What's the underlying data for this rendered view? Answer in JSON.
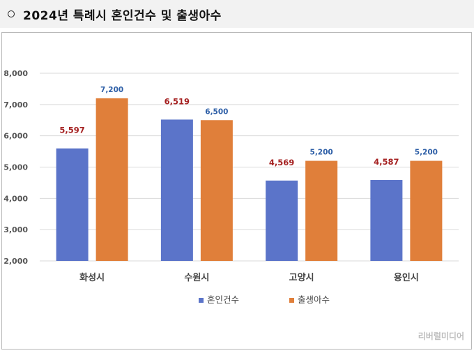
{
  "header": {
    "title": "2024년 특례시 혼인건수 및 출생아수"
  },
  "watermark": "리버럴미디어",
  "colors": {
    "series1": "#5b74c9",
    "series2": "#e07f3a",
    "label1": "#a52121",
    "label2": "#2e5fa7",
    "axis_text": "#555555",
    "grid": "#d9d9d9"
  },
  "chart_data": {
    "type": "bar",
    "categories": [
      "화성시",
      "수원시",
      "고양시",
      "용인시"
    ],
    "series": [
      {
        "name": "혼인건수",
        "values": [
          5597,
          6519,
          4569,
          4587
        ],
        "labels": [
          "5,597",
          "6,519",
          "4,569",
          "4,587"
        ]
      },
      {
        "name": "출생아수",
        "values": [
          7200,
          6500,
          5200,
          5200
        ],
        "labels": [
          "7,200",
          "6,500",
          "5,200",
          "5,200"
        ]
      }
    ],
    "ylim": [
      2000,
      8000
    ],
    "yticks": [
      2000,
      3000,
      4000,
      5000,
      6000,
      7000,
      8000
    ],
    "ytick_labels": [
      "2,000",
      "3,000",
      "4,000",
      "5,000",
      "6,000",
      "7,000",
      "8,000"
    ],
    "grid": true,
    "legend": "bottom"
  }
}
